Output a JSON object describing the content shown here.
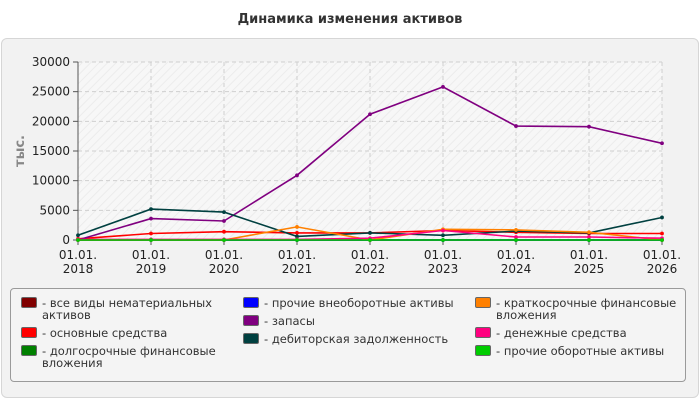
{
  "title": "Динамика изменения активов",
  "chart_data": {
    "type": "line",
    "title": "Динамика изменения активов",
    "ylabel": "тыс.",
    "ylim": [
      0,
      30000
    ],
    "yticks": [
      0,
      5000,
      10000,
      15000,
      20000,
      25000,
      30000
    ],
    "categories": [
      "01.01.\n2018",
      "01.01.\n2019",
      "01.01.\n2020",
      "01.01.\n2021",
      "01.01.\n2022",
      "01.01.\n2023",
      "01.01.\n2024",
      "01.01.\n2025",
      "01.01.\n2026"
    ],
    "grid": true,
    "legend_position": "bottom",
    "series": [
      {
        "name": "все виды нематериальных активов",
        "color": "#800000",
        "values": [
          0,
          0,
          0,
          0,
          0,
          0,
          0,
          0,
          0
        ]
      },
      {
        "name": "основные средства",
        "color": "#ff0000",
        "values": [
          200,
          1100,
          1400,
          1200,
          1200,
          1600,
          1300,
          1100,
          1100
        ]
      },
      {
        "name": "долгосрочные финансовые вложения",
        "color": "#008000",
        "values": [
          0,
          0,
          0,
          0,
          0,
          0,
          0,
          0,
          0
        ]
      },
      {
        "name": "прочие внеоборотные активы",
        "color": "#0000ff",
        "values": [
          0,
          0,
          0,
          0,
          0,
          0,
          0,
          0,
          0
        ]
      },
      {
        "name": "запасы",
        "color": "#800080",
        "values": [
          0,
          3600,
          3200,
          10900,
          21200,
          25800,
          19200,
          19100,
          16300
        ]
      },
      {
        "name": "дебиторская задолженность",
        "color": "#004040",
        "values": [
          800,
          5200,
          4700,
          600,
          1200,
          800,
          1500,
          1200,
          3800
        ]
      },
      {
        "name": "краткосрочные финансовые вложения",
        "color": "#ff8000",
        "values": [
          0,
          0,
          0,
          2200,
          0,
          1800,
          1700,
          1300,
          0
        ]
      },
      {
        "name": "денежные средства",
        "color": "#ff0080",
        "values": [
          100,
          100,
          100,
          100,
          300,
          1600,
          500,
          500,
          300
        ]
      },
      {
        "name": "прочие оборотные активы",
        "color": "#00cc00",
        "values": [
          0,
          0,
          0,
          0,
          0,
          0,
          0,
          0,
          0
        ]
      }
    ]
  }
}
